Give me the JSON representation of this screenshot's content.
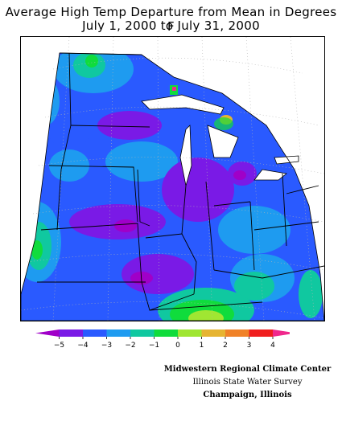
{
  "title": {
    "line1": "Average High Temp Departure from Mean in Degrees F",
    "line2": "July 1, 2000 to July 31, 2000"
  },
  "legend": {
    "colors": [
      "#a000c8",
      "#7a1ae6",
      "#2a5aff",
      "#1e9bf0",
      "#10c8a0",
      "#10dc3c",
      "#a0e632",
      "#e6b432",
      "#f08228",
      "#f01e1e",
      "#f0288c"
    ],
    "tick_labels": [
      "−5",
      "−4",
      "−3",
      "−2",
      "−1",
      "0",
      "1",
      "2",
      "3",
      "4"
    ]
  },
  "credits": {
    "line1": "Midwestern Regional Climate Center",
    "line2": "Illinois State Water Survey",
    "line3": "Champaign, Illinois"
  }
}
